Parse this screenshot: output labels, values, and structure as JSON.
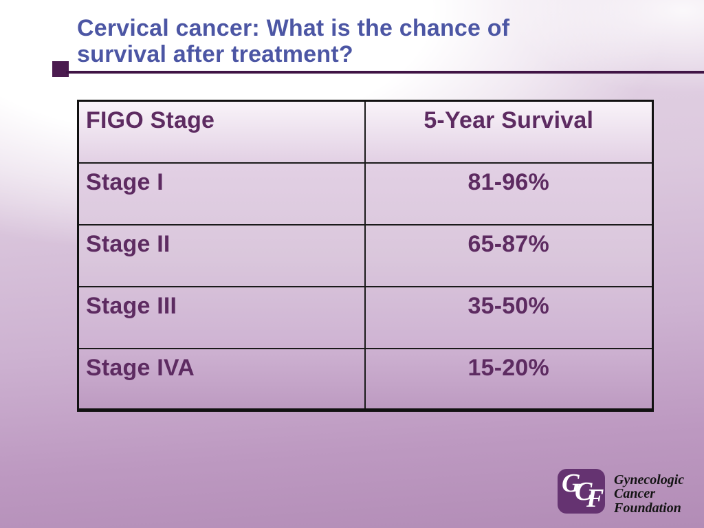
{
  "slide": {
    "title_line1": "Cervical cancer: What is the chance of",
    "title_line2": "survival after treatment?"
  },
  "table": {
    "columns": [
      "FIGO Stage",
      "5-Year Survival"
    ],
    "rows": [
      {
        "stage": "Stage I",
        "survival": "81-96%"
      },
      {
        "stage": "Stage II",
        "survival": "65-87%"
      },
      {
        "stage": "Stage III",
        "survival": "35-50%"
      },
      {
        "stage": "Stage IVA",
        "survival": "15-20%"
      }
    ]
  },
  "logo": {
    "letters": [
      "G",
      "C",
      "F"
    ],
    "name_lines": [
      "Gynecologic",
      "Cancer",
      "Foundation"
    ]
  },
  "colors": {
    "title_text": "#4c56a4",
    "accent_rule": "#401445",
    "bullet_square": "#4b1b4f",
    "table_text": "#5d2b61",
    "table_border": "#1a1a1a",
    "logo_badge": "#653371",
    "background_purple": "#b28cb6"
  }
}
